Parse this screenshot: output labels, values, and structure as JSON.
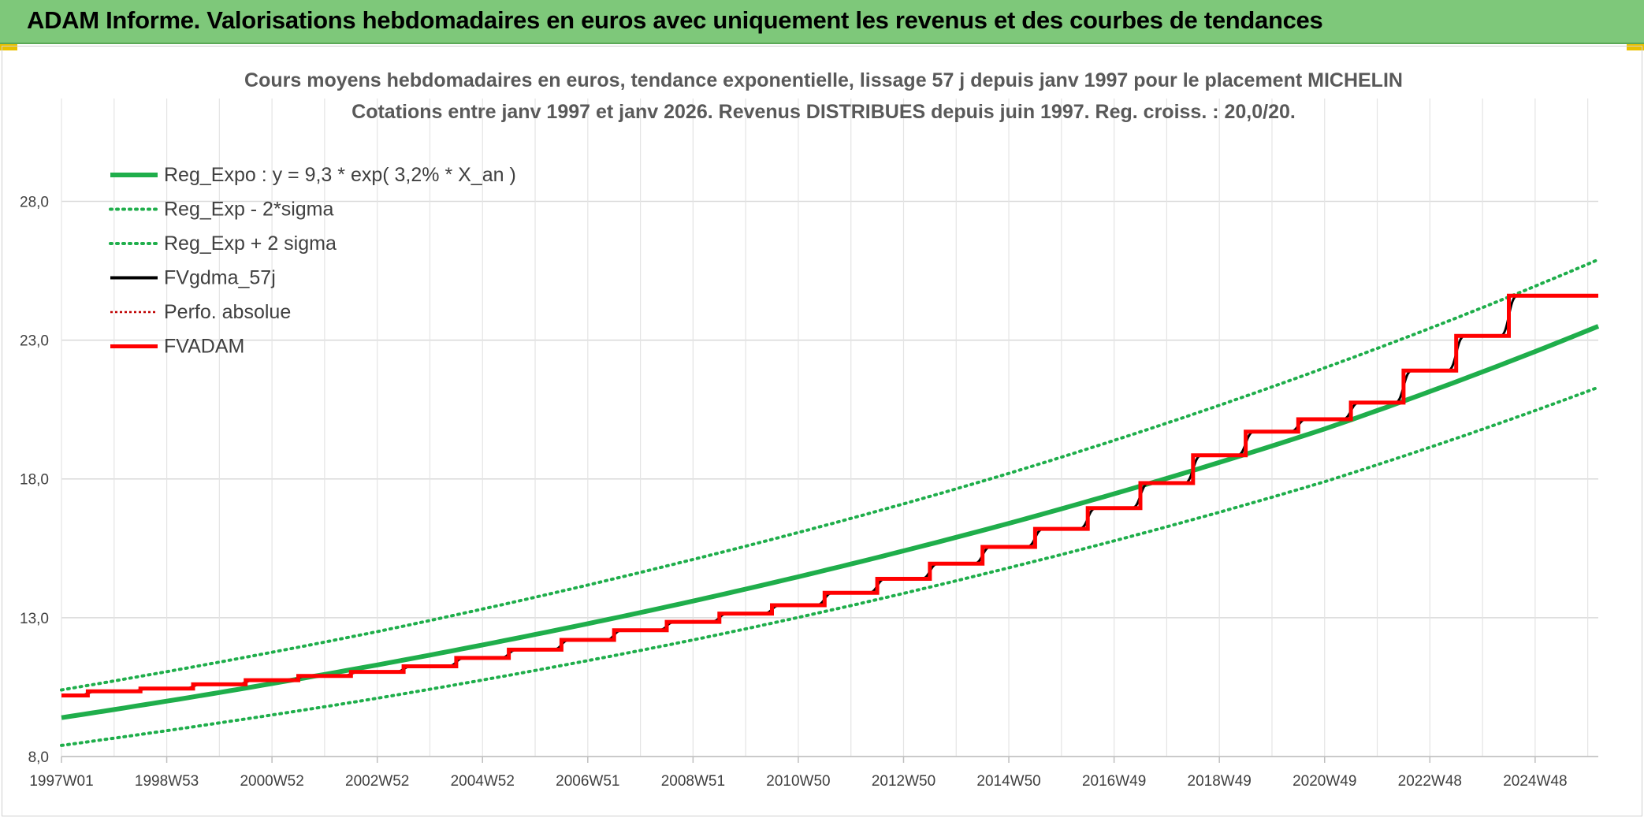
{
  "banner": {
    "title": "ADAM Informe. Valorisations hebdomadaires en euros avec uniquement les revenus et des courbes de tendances",
    "color": "#7ec87a"
  },
  "chart_data": {
    "type": "line",
    "title_line1": "Cours moyens hebdomadaires en euros, tendance exponentielle, lissage 57 j depuis janv 1997 pour le placement MICHELIN",
    "title_line2": "Cotations entre janv 1997 et janv 2026. Revenus DISTRIBUES depuis juin 1997. Reg. croiss. : 20,0/20.",
    "xlabel": "",
    "ylabel": "",
    "ylim": [
      8,
      30
    ],
    "yticks": [
      "8,0",
      "13,0",
      "18,0",
      "23,0",
      "28,0"
    ],
    "x_range": [
      1997.0,
      2026.2
    ],
    "xticks": [
      {
        "label": "1997W01",
        "x": 1997.0
      },
      {
        "label": "1998W53",
        "x": 1999.0
      },
      {
        "label": "2000W52",
        "x": 2001.0
      },
      {
        "label": "2002W52",
        "x": 2003.0
      },
      {
        "label": "2004W52",
        "x": 2005.0
      },
      {
        "label": "2006W51",
        "x": 2007.0
      },
      {
        "label": "2008W51",
        "x": 2009.0
      },
      {
        "label": "2010W50",
        "x": 2011.0
      },
      {
        "label": "2012W50",
        "x": 2013.0
      },
      {
        "label": "2014W50",
        "x": 2015.0
      },
      {
        "label": "2016W49",
        "x": 2017.0
      },
      {
        "label": "2018W49",
        "x": 2019.0
      },
      {
        "label": "2020W49",
        "x": 2021.0
      },
      {
        "label": "2022W48",
        "x": 2023.0
      },
      {
        "label": "2024W48",
        "x": 2025.0
      }
    ],
    "grid": true,
    "legend_position": "top-left",
    "series": [
      {
        "name": "Reg_Expo : y = 9,3 * exp( 3,2% *  X_an )",
        "color": "#1fae4b",
        "style": "solid-thick",
        "x": [
          1997.0,
          2003.0,
          2009.0,
          2015.0,
          2021.0,
          2026.2
        ],
        "y": [
          9.4,
          11.3,
          13.6,
          16.4,
          19.8,
          23.5
        ]
      },
      {
        "name": "Reg_Exp - 2*sigma",
        "color": "#1fae4b",
        "style": "dotted",
        "x": [
          1997.0,
          2003.0,
          2009.0,
          2015.0,
          2021.0,
          2026.2
        ],
        "y": [
          8.4,
          10.1,
          12.2,
          14.8,
          17.9,
          21.3
        ]
      },
      {
        "name": "Reg_Exp + 2 sigma",
        "color": "#1fae4b",
        "style": "dotted",
        "x": [
          1997.0,
          2003.0,
          2009.0,
          2015.0,
          2021.0,
          2026.2
        ],
        "y": [
          10.4,
          12.5,
          15.1,
          18.2,
          22.0,
          25.9
        ]
      },
      {
        "name": "FVgdma_57j",
        "color": "#000000",
        "style": "solid",
        "smooth_of": "FVADAM"
      },
      {
        "name": "Perfo. absolue",
        "color": "#c00000",
        "style": "dotted",
        "x": [],
        "y": []
      },
      {
        "name": "FVADAM",
        "color": "#ff0000",
        "style": "step",
        "x": [
          1997.0,
          1997.5,
          1998.5,
          1999.5,
          2000.5,
          2001.5,
          2002.5,
          2003.5,
          2004.5,
          2005.5,
          2006.5,
          2007.5,
          2008.5,
          2009.5,
          2010.5,
          2011.5,
          2012.5,
          2013.5,
          2014.5,
          2015.5,
          2016.5,
          2017.5,
          2018.5,
          2019.5,
          2020.5,
          2021.5,
          2022.5,
          2023.5,
          2024.5,
          2026.2
        ],
        "y": [
          10.2,
          10.35,
          10.45,
          10.6,
          10.75,
          10.9,
          11.05,
          11.25,
          11.55,
          11.85,
          12.2,
          12.55,
          12.85,
          13.15,
          13.45,
          13.9,
          14.4,
          14.95,
          15.55,
          16.2,
          16.95,
          17.85,
          18.85,
          19.7,
          20.15,
          20.75,
          21.9,
          23.15,
          24.6,
          25.9
        ]
      }
    ]
  }
}
